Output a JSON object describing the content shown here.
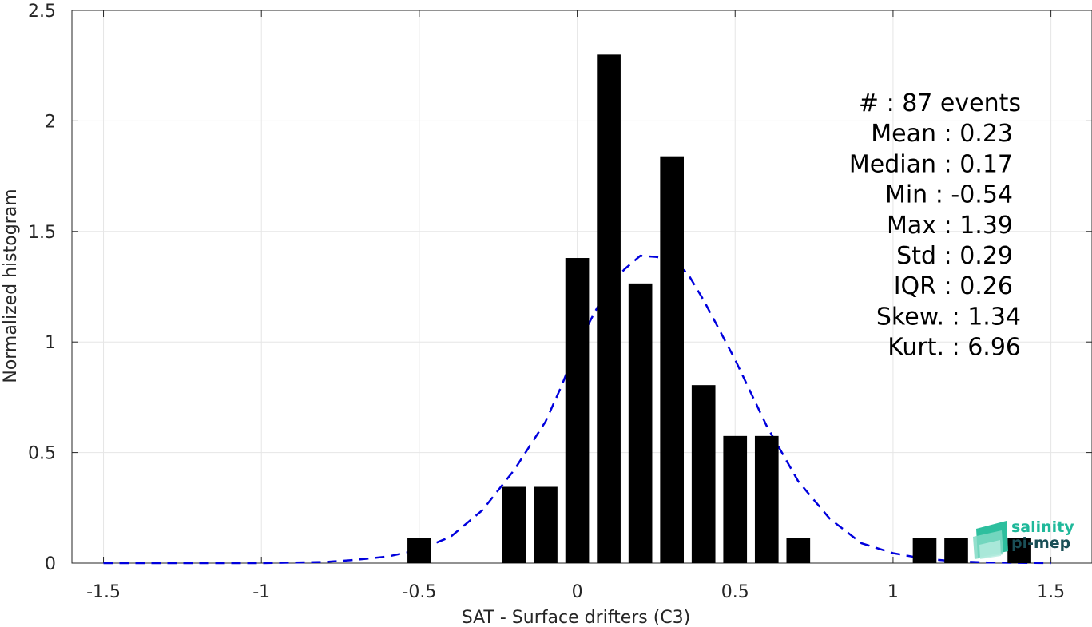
{
  "chart_data": {
    "type": "bar",
    "xlabel": "SAT - Surface drifters (C3)",
    "ylabel": "Normalized histogram",
    "xlim": [
      -1.6,
      1.63
    ],
    "ylim": [
      0,
      2.5
    ],
    "grid": true,
    "xticks": [
      -1.5,
      -1,
      -0.5,
      0,
      0.5,
      1,
      1.5
    ],
    "xtick_labels": [
      "-1.5",
      "-1",
      "-0.5",
      "0",
      "0.5",
      "1",
      "1.5"
    ],
    "yticks": [
      0,
      0.5,
      1,
      1.5,
      2,
      2.5
    ],
    "ytick_labels": [
      "0",
      "0.5",
      "1",
      "1.5",
      "2",
      "2.5"
    ],
    "bar_width": 0.075,
    "bars": {
      "name": "histogram",
      "color": "#000000",
      "x": [
        -0.5,
        -0.2,
        -0.1,
        0.0,
        0.1,
        0.2,
        0.3,
        0.4,
        0.5,
        0.6,
        0.7,
        1.1,
        1.2,
        1.4
      ],
      "values": [
        0.115,
        0.345,
        0.345,
        1.38,
        2.3,
        1.265,
        1.84,
        0.805,
        0.575,
        0.575,
        0.115,
        0.115,
        0.115,
        0.115
      ]
    },
    "fit_curve": {
      "color": "#0000dd",
      "style": "dashed",
      "x": [
        -1.5,
        -1.2,
        -1.0,
        -0.8,
        -0.7,
        -0.6,
        -0.5,
        -0.4,
        -0.3,
        -0.2,
        -0.1,
        -0.05,
        0.0,
        0.05,
        0.1,
        0.15,
        0.2,
        0.25,
        0.3,
        0.35,
        0.4,
        0.5,
        0.6,
        0.7,
        0.8,
        0.9,
        1.0,
        1.1,
        1.2,
        1.3,
        1.5
      ],
      "y": [
        0.0,
        0.0,
        0.0,
        0.005,
        0.015,
        0.03,
        0.06,
        0.12,
        0.24,
        0.42,
        0.64,
        0.8,
        0.98,
        1.12,
        1.25,
        1.33,
        1.39,
        1.385,
        1.37,
        1.31,
        1.19,
        0.92,
        0.62,
        0.37,
        0.2,
        0.09,
        0.045,
        0.02,
        0.008,
        0.003,
        0.0
      ]
    }
  },
  "stats": [
    "#  : 87 events",
    "Mean : 0.23",
    "Median : 0.17",
    "Min : -0.54",
    "Max : 1.39",
    "Std : 0.29",
    "IQR : 0.26",
    "Skew. : 1.34",
    "Kurt. : 6.96"
  ],
  "logo": {
    "line1": "salinity",
    "line2": "pi-mep",
    "color1": "#1fb89a",
    "color2": "#1a4f57"
  }
}
